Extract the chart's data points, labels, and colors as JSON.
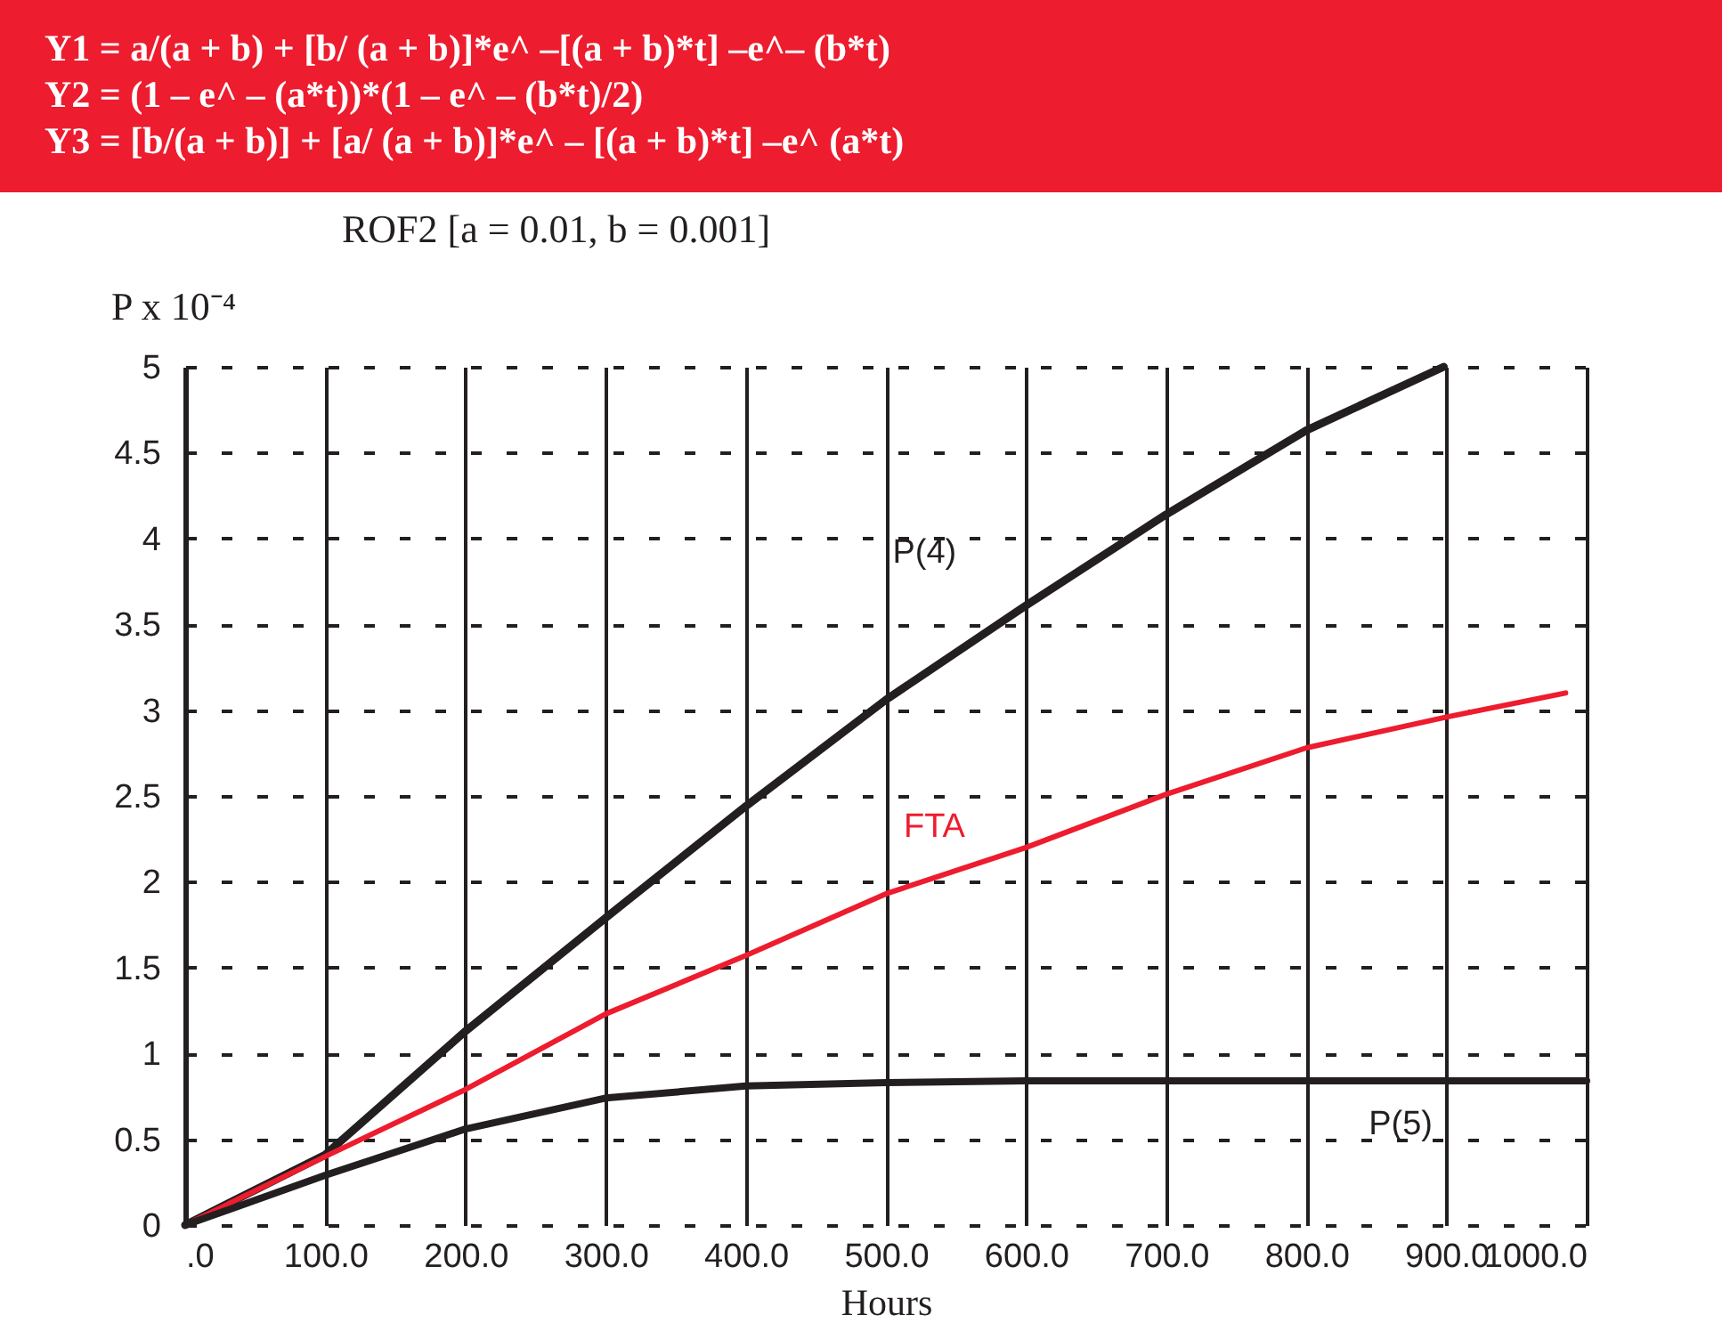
{
  "chart_data": {
    "type": "line",
    "title": "ROF2 [a = 0.01, b = 0.001]",
    "ylabel": "P x 10⁻⁴",
    "xlabel": "Hours",
    "annotations": [
      "Y1 = a/(a + b) +  [b/ (a + b)]*e^ –[(a + b)*t] –e^– (b*t)",
      "Y2 = (1 – e^ – (a*t))*(1 – e^ – (b*t)/2)",
      "Y3 = [b/(a + b)] +  [a/ (a + b)]*e^ – [(a + b)*t] –e^ (a*t)"
    ],
    "xlim": [
      0,
      1000
    ],
    "xticks": [
      {
        "value": 0,
        "label": ".0"
      },
      {
        "value": 100,
        "label": "100.0"
      },
      {
        "value": 200,
        "label": "200.0"
      },
      {
        "value": 300,
        "label": "300.0"
      },
      {
        "value": 400,
        "label": "400.0"
      },
      {
        "value": 500,
        "label": "500.0"
      },
      {
        "value": 600,
        "label": "600.0"
      },
      {
        "value": 700,
        "label": "700.0"
      },
      {
        "value": 800,
        "label": "800.0"
      },
      {
        "value": 900,
        "label": "900.0"
      },
      {
        "value": 1000,
        "label": "1000.0"
      }
    ],
    "ylim": [
      0,
      5
    ],
    "yticks": [
      0,
      0.5,
      1,
      1.5,
      2,
      2.5,
      3,
      3.5,
      4,
      4.5,
      5
    ],
    "grid": true,
    "marker": "none",
    "line_style": "solid",
    "series": [
      {
        "name": "P(4)",
        "color": "#231f20",
        "x": [
          0,
          100,
          200,
          300,
          400,
          500,
          600,
          700,
          800,
          898
        ],
        "values": [
          0,
          0.41,
          1.13,
          1.79,
          2.44,
          3.06,
          3.61,
          4.14,
          4.63,
          5.0
        ]
      },
      {
        "name": "FTA",
        "color": "#ed1c2e",
        "x": [
          0,
          100,
          200,
          300,
          400,
          500,
          600,
          700,
          800,
          900,
          985
        ],
        "values": [
          0,
          0.4,
          0.79,
          1.23,
          1.57,
          1.93,
          2.2,
          2.51,
          2.78,
          2.96,
          3.1
        ]
      },
      {
        "name": "P(5)",
        "color": "#231f20",
        "x": [
          0,
          100,
          200,
          300,
          400,
          500,
          600,
          700,
          800,
          900,
          1000
        ],
        "values": [
          0,
          0.29,
          0.56,
          0.74,
          0.81,
          0.83,
          0.84,
          0.84,
          0.84,
          0.84,
          0.84
        ]
      }
    ]
  }
}
